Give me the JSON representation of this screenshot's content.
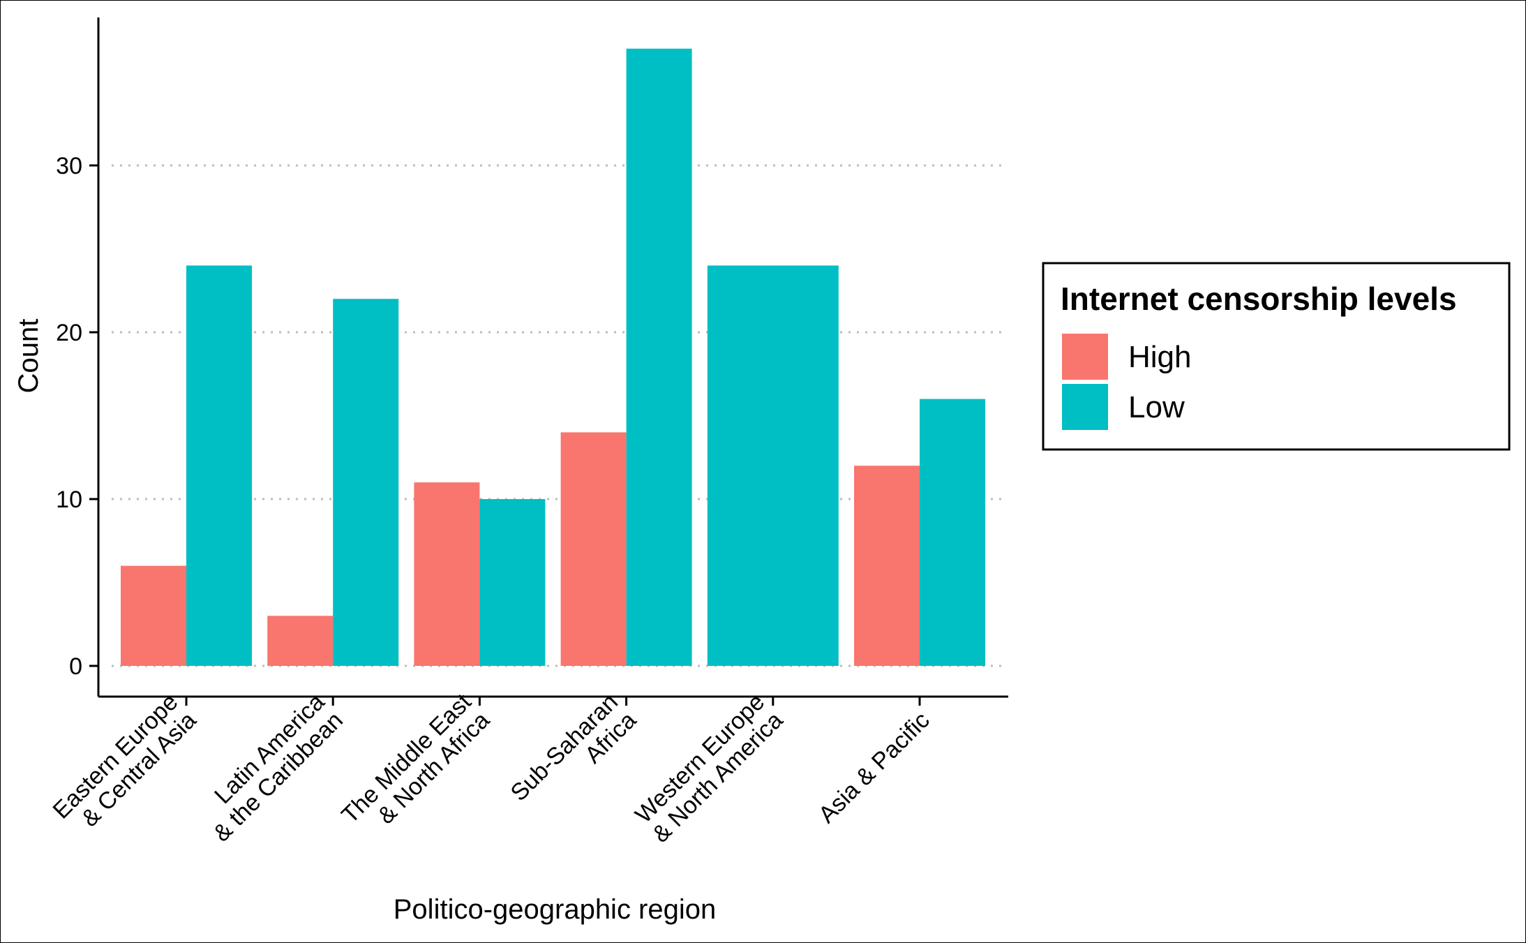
{
  "chart_data": {
    "type": "bar",
    "title": "",
    "xlabel": "Politico-geographic region",
    "ylabel": "Count",
    "ylim": [
      0,
      38
    ],
    "yticks": [
      0,
      10,
      20,
      30
    ],
    "grid": "horizontal-dotted",
    "legend_position": "right",
    "legend_title": "Internet censorship levels",
    "categories": [
      [
        "Eastern Europe",
        "& Central Asia"
      ],
      [
        "Latin America",
        "& the Caribbean"
      ],
      [
        "The Middle East",
        "& North Africa"
      ],
      [
        "Sub-Saharan",
        "Africa"
      ],
      [
        "Western Europe",
        "& North America"
      ],
      [
        "Asia & Pacific"
      ]
    ],
    "series": [
      {
        "name": "High",
        "color": "#F8766D",
        "values": [
          6,
          3,
          11,
          14,
          null,
          12
        ]
      },
      {
        "name": "Low",
        "color": "#00BFC4",
        "values": [
          24,
          22,
          10,
          37,
          24,
          16
        ]
      }
    ]
  }
}
